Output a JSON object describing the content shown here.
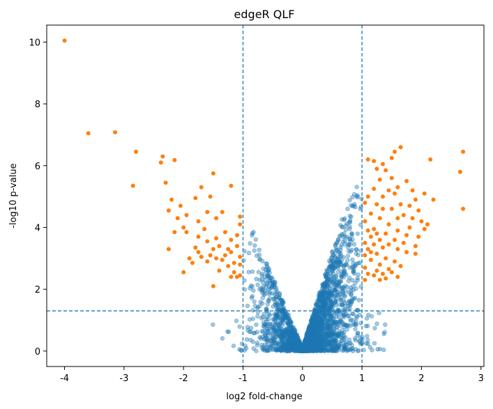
{
  "chart_data": {
    "type": "scatter",
    "title": "edgeR QLF",
    "xlabel": "log2 fold-change",
    "ylabel": "-log10 p-value",
    "xlim": [
      -4.3,
      3.05
    ],
    "ylim": [
      -0.5,
      10.55
    ],
    "x_ticks": [
      -4,
      -3,
      -2,
      -1,
      0,
      1,
      2,
      3
    ],
    "y_ticks": [
      0,
      2,
      4,
      6,
      8,
      10
    ],
    "grid": false,
    "thresholds": {
      "x": [
        -1,
        1
      ],
      "y": 1.3,
      "style": "dashed"
    },
    "colors": {
      "not_significant": "#1f77b4",
      "significant": "#ff7f0e",
      "threshold_line": "#1f77b4"
    },
    "series": [
      {
        "color": "#ff7f0e",
        "alpha": 1.0,
        "points": [
          [
            -4.0,
            10.05
          ],
          [
            -3.6,
            7.05
          ],
          [
            -3.15,
            7.08
          ],
          [
            -2.8,
            6.45
          ],
          [
            -2.35,
            6.3
          ],
          [
            -2.38,
            6.1
          ],
          [
            -2.15,
            6.18
          ],
          [
            -2.3,
            5.45
          ],
          [
            -2.85,
            5.35
          ],
          [
            -1.5,
            5.75
          ],
          [
            -1.2,
            5.35
          ],
          [
            -1.7,
            5.3
          ],
          [
            -1.55,
            5.0
          ],
          [
            -2.2,
            4.9
          ],
          [
            -1.8,
            4.95
          ],
          [
            -2.05,
            4.7
          ],
          [
            -2.25,
            4.55
          ],
          [
            -1.95,
            4.4
          ],
          [
            -1.6,
            4.5
          ],
          [
            -1.35,
            4.5
          ],
          [
            -2.1,
            4.3
          ],
          [
            -1.75,
            4.2
          ],
          [
            -1.45,
            4.3
          ],
          [
            -1.05,
            4.35
          ],
          [
            -2.0,
            4.0
          ],
          [
            -1.95,
            3.85
          ],
          [
            -1.65,
            3.95
          ],
          [
            -1.3,
            3.85
          ],
          [
            -1.05,
            4.1
          ],
          [
            -2.15,
            3.85
          ],
          [
            -1.75,
            3.7
          ],
          [
            -1.6,
            3.55
          ],
          [
            -1.45,
            3.65
          ],
          [
            -1.2,
            3.6
          ],
          [
            -1.1,
            3.75
          ],
          [
            -2.25,
            3.3
          ],
          [
            -1.8,
            3.35
          ],
          [
            -1.75,
            3.2
          ],
          [
            -1.5,
            3.3
          ],
          [
            -1.4,
            3.4
          ],
          [
            -1.25,
            3.3
          ],
          [
            -1.1,
            3.4
          ],
          [
            -1.9,
            3.0
          ],
          [
            -1.7,
            3.05
          ],
          [
            -1.55,
            3.1
          ],
          [
            -1.45,
            3.0
          ],
          [
            -1.3,
            3.1
          ],
          [
            -1.2,
            3.2
          ],
          [
            -1.05,
            3.05
          ],
          [
            -1.85,
            2.85
          ],
          [
            -1.6,
            2.9
          ],
          [
            -1.35,
            2.95
          ],
          [
            -1.15,
            2.85
          ],
          [
            -1.25,
            2.75
          ],
          [
            -1.05,
            2.8
          ],
          [
            -1.4,
            2.6
          ],
          [
            -1.15,
            2.55
          ],
          [
            -1.05,
            2.45
          ],
          [
            -2.0,
            2.55
          ],
          [
            -1.5,
            2.1
          ],
          [
            -1.1,
            2.4
          ],
          [
            -1.2,
            2.4
          ],
          [
            2.7,
            6.45
          ],
          [
            2.65,
            5.8
          ],
          [
            2.7,
            4.6
          ],
          [
            2.2,
            4.9
          ],
          [
            2.15,
            6.2
          ],
          [
            2.05,
            5.1
          ],
          [
            1.65,
            6.6
          ],
          [
            1.55,
            6.45
          ],
          [
            1.35,
            6.05
          ],
          [
            1.5,
            6.25
          ],
          [
            1.2,
            6.15
          ],
          [
            1.1,
            6.2
          ],
          [
            1.25,
            5.9
          ],
          [
            1.4,
            5.85
          ],
          [
            1.3,
            5.55
          ],
          [
            1.5,
            5.6
          ],
          [
            1.75,
            5.5
          ],
          [
            1.6,
            5.3
          ],
          [
            1.85,
            5.2
          ],
          [
            1.9,
            4.9
          ],
          [
            1.95,
            4.55
          ],
          [
            1.8,
            4.7
          ],
          [
            1.55,
            5.1
          ],
          [
            1.45,
            5.2
          ],
          [
            1.35,
            5.0
          ],
          [
            1.2,
            5.25
          ],
          [
            1.1,
            5.0
          ],
          [
            1.05,
            4.8
          ],
          [
            1.25,
            4.75
          ],
          [
            1.5,
            4.6
          ],
          [
            1.65,
            4.75
          ],
          [
            1.7,
            4.4
          ],
          [
            1.85,
            4.3
          ],
          [
            2.0,
            4.2
          ],
          [
            1.8,
            4.0
          ],
          [
            1.6,
            3.9
          ],
          [
            1.45,
            4.1
          ],
          [
            1.3,
            4.3
          ],
          [
            1.15,
            4.45
          ],
          [
            1.05,
            4.2
          ],
          [
            1.2,
            3.95
          ],
          [
            1.4,
            3.8
          ],
          [
            1.55,
            3.6
          ],
          [
            1.7,
            3.5
          ],
          [
            1.9,
            3.4
          ],
          [
            1.75,
            3.2
          ],
          [
            1.6,
            3.3
          ],
          [
            1.45,
            3.45
          ],
          [
            1.3,
            3.6
          ],
          [
            1.15,
            3.7
          ],
          [
            1.05,
            3.5
          ],
          [
            1.1,
            3.3
          ],
          [
            1.25,
            3.15
          ],
          [
            1.4,
            3.0
          ],
          [
            1.55,
            2.9
          ],
          [
            1.65,
            2.75
          ],
          [
            1.45,
            2.65
          ],
          [
            1.3,
            2.8
          ],
          [
            1.15,
            2.95
          ],
          [
            1.05,
            2.7
          ],
          [
            1.1,
            2.5
          ],
          [
            1.2,
            2.45
          ],
          [
            1.35,
            2.5
          ],
          [
            1.5,
            2.55
          ],
          [
            1.6,
            2.4
          ],
          [
            1.3,
            2.3
          ],
          [
            1.05,
            2.3
          ],
          [
            1.2,
            3.45
          ],
          [
            1.35,
            3.35
          ],
          [
            1.25,
            3.8
          ],
          [
            1.1,
            3.9
          ],
          [
            1.35,
            4.6
          ],
          [
            1.6,
            4.3
          ],
          [
            1.75,
            3.75
          ],
          [
            1.95,
            3.7
          ],
          [
            2.05,
            3.95
          ],
          [
            2.1,
            4.1
          ],
          [
            1.9,
            3.15
          ],
          [
            1.25,
            2.6
          ],
          [
            1.4,
            2.35
          ],
          [
            1.05,
            3.1
          ],
          [
            1.15,
            3.2
          ]
        ]
      }
    ]
  }
}
